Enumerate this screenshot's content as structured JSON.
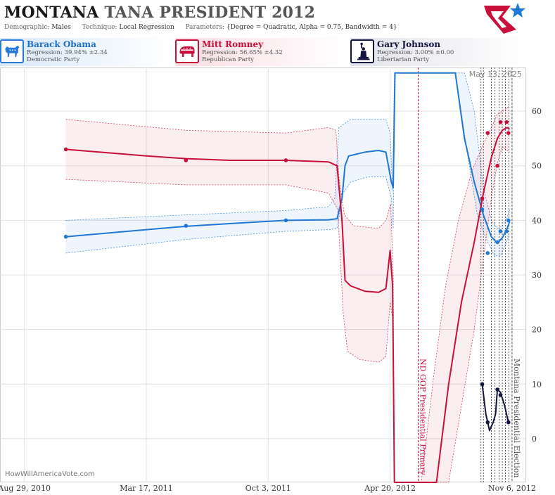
{
  "header": {
    "title_state": "MONTANA",
    "title_rest": "TANA PRESIDENT 2012",
    "demographic_label": "Demographic:",
    "demographic_value": "Males",
    "technique_label": "Technique:",
    "technique_value": "Local Regression",
    "parameters_label": "Parameters:",
    "parameters_value": "{Degree = Quadratic, Alpha = 0.75, Bandwidth = 4}"
  },
  "candidates": [
    {
      "name": "Barack Obama",
      "regression": "Regression: 39.94% ±2.34",
      "party": "Democratic Party",
      "color": "#1f78d4",
      "icon": "donkey-icon"
    },
    {
      "name": "Mitt Romney",
      "regression": "Regression: 56.65% ±4.32",
      "party": "Republican Party",
      "color": "#c8103a",
      "icon": "elephant-icon"
    },
    {
      "name": "Gary Johnson",
      "regression": "Regression: 3.00% ±0.00",
      "party": "Libertarian Party",
      "color": "#141440",
      "icon": "liberty-statue-icon"
    }
  ],
  "watermark": "HowWillAmericaVote.com",
  "date_stamp": "May 13, 2025",
  "chart_data": {
    "type": "line",
    "x_axis": {
      "type": "date",
      "range": [
        "2010-07-20",
        "2012-11-28"
      ],
      "ticks": [
        {
          "date": "2010-08-29",
          "label": "Aug 29, 2010"
        },
        {
          "date": "2011-03-17",
          "label": "Mar 17, 2011"
        },
        {
          "date": "2011-10-03",
          "label": "Oct 3, 2011"
        },
        {
          "date": "2012-04-20",
          "label": "Apr 20, 2012"
        },
        {
          "date": "2012-11-06",
          "label": "Nov 6, 2012"
        }
      ]
    },
    "y_axis": {
      "range": [
        -8,
        68
      ],
      "ticks": [
        0,
        10,
        20,
        30,
        40,
        50,
        60
      ],
      "position": "right"
    },
    "grid": true,
    "events": [
      {
        "date": "2012-06-05",
        "label": "ND GOP Presidential Primary",
        "color": "#c8103a"
      },
      {
        "date": "2012-11-06",
        "label": "Montana Presidential Election",
        "color": "#555555"
      }
    ],
    "poll_dates": [
      "2012-09-16",
      "2012-09-20",
      "2012-10-03",
      "2012-10-09",
      "2012-10-16",
      "2012-10-21",
      "2012-10-26",
      "2012-11-01"
    ],
    "series": [
      {
        "name": "Barack Obama",
        "color": "#1f78d4",
        "points": [
          {
            "date": "2010-11-05",
            "value": 37
          },
          {
            "date": "2011-05-21",
            "value": 39
          },
          {
            "date": "2011-11-01",
            "value": 40
          },
          {
            "date": "2012-09-18",
            "value": 42
          },
          {
            "date": "2012-09-27",
            "value": 34
          },
          {
            "date": "2012-10-13",
            "value": 36
          },
          {
            "date": "2012-10-18",
            "value": 38
          },
          {
            "date": "2012-10-28",
            "value": 38
          },
          {
            "date": "2012-10-31",
            "value": 40
          }
        ],
        "trend": [
          {
            "date": "2010-11-05",
            "value": 37.0
          },
          {
            "date": "2011-03-17",
            "value": 38.3
          },
          {
            "date": "2011-05-21",
            "value": 38.9
          },
          {
            "date": "2011-08-01",
            "value": 39.4
          },
          {
            "date": "2011-11-01",
            "value": 40.0
          },
          {
            "date": "2012-01-10",
            "value": 40.1
          },
          {
            "date": "2012-01-24",
            "value": 40.3
          },
          {
            "date": "2012-02-01",
            "value": 44.0
          },
          {
            "date": "2012-02-06",
            "value": 50.0
          },
          {
            "date": "2012-02-12",
            "value": 51.8
          },
          {
            "date": "2012-03-10",
            "value": 52.5
          },
          {
            "date": "2012-04-01",
            "value": 52.8
          },
          {
            "date": "2012-04-13",
            "value": 52.5
          },
          {
            "date": "2012-04-22",
            "value": 47.0
          },
          {
            "date": "2012-04-25",
            "value": 46.0
          },
          {
            "date": "2012-04-28",
            "value": 67.0
          },
          {
            "date": "2012-08-05",
            "value": 67.0
          },
          {
            "date": "2012-08-20",
            "value": 55.0
          },
          {
            "date": "2012-09-05",
            "value": 47.0
          },
          {
            "date": "2012-09-20",
            "value": 41.0
          },
          {
            "date": "2012-10-03",
            "value": 37.0
          },
          {
            "date": "2012-10-13",
            "value": 35.8
          },
          {
            "date": "2012-10-21",
            "value": 36.8
          },
          {
            "date": "2012-10-29",
            "value": 38.5
          },
          {
            "date": "2012-11-02",
            "value": 39.8
          }
        ],
        "band_upper": [
          {
            "date": "2010-11-05",
            "value": 40.0
          },
          {
            "date": "2011-05-21",
            "value": 41.0
          },
          {
            "date": "2011-11-01",
            "value": 41.8
          },
          {
            "date": "2012-01-10",
            "value": 42.5
          },
          {
            "date": "2012-01-20",
            "value": 44.0
          },
          {
            "date": "2012-01-27",
            "value": 57.0
          },
          {
            "date": "2012-02-15",
            "value": 58.5
          },
          {
            "date": "2012-04-13",
            "value": 58.5
          },
          {
            "date": "2012-04-20",
            "value": 56.0
          },
          {
            "date": "2012-04-24",
            "value": 45.5
          },
          {
            "date": "2012-04-27",
            "value": 67.0
          },
          {
            "date": "2012-08-20",
            "value": 67.0
          },
          {
            "date": "2012-09-05",
            "value": 60.0
          },
          {
            "date": "2012-09-20",
            "value": 46.0
          },
          {
            "date": "2012-10-03",
            "value": 40.0
          },
          {
            "date": "2012-10-13",
            "value": 38.5
          },
          {
            "date": "2012-10-21",
            "value": 39.0
          },
          {
            "date": "2012-10-29",
            "value": 40.5
          },
          {
            "date": "2012-11-02",
            "value": 42.0
          }
        ],
        "band_lower": [
          {
            "date": "2010-11-05",
            "value": 34.0
          },
          {
            "date": "2011-05-21",
            "value": 36.5
          },
          {
            "date": "2011-11-01",
            "value": 38.0
          },
          {
            "date": "2012-01-10",
            "value": 38.3
          },
          {
            "date": "2012-01-24",
            "value": 38.5
          },
          {
            "date": "2012-02-03",
            "value": 45.0
          },
          {
            "date": "2012-02-15",
            "value": 47.0
          },
          {
            "date": "2012-03-15",
            "value": 48.0
          },
          {
            "date": "2012-04-13",
            "value": 48.0
          },
          {
            "date": "2012-04-22",
            "value": 44.0
          },
          {
            "date": "2012-04-25",
            "value": 38.5
          },
          {
            "date": "2012-04-28",
            "value": 67.0
          },
          {
            "date": "2012-08-05",
            "value": 67.0
          },
          {
            "date": "2012-08-25",
            "value": 52.0
          },
          {
            "date": "2012-09-10",
            "value": 41.0
          },
          {
            "date": "2012-09-25",
            "value": 36.5
          },
          {
            "date": "2012-10-08",
            "value": 33.5
          },
          {
            "date": "2012-10-18",
            "value": 33.5
          },
          {
            "date": "2012-10-26",
            "value": 35.5
          },
          {
            "date": "2012-11-02",
            "value": 37.5
          }
        ]
      },
      {
        "name": "Mitt Romney",
        "color": "#c8103a",
        "points": [
          {
            "date": "2010-11-05",
            "value": 53
          },
          {
            "date": "2011-05-21",
            "value": 51
          },
          {
            "date": "2011-11-01",
            "value": 51
          },
          {
            "date": "2012-09-18",
            "value": 44
          },
          {
            "date": "2012-09-27",
            "value": 56
          },
          {
            "date": "2012-10-13",
            "value": 50
          },
          {
            "date": "2012-10-18",
            "value": 58
          },
          {
            "date": "2012-10-28",
            "value": 58
          },
          {
            "date": "2012-10-31",
            "value": 56
          }
        ],
        "trend": [
          {
            "date": "2010-11-05",
            "value": 53.0
          },
          {
            "date": "2011-03-17",
            "value": 51.8
          },
          {
            "date": "2011-05-21",
            "value": 51.3
          },
          {
            "date": "2011-08-01",
            "value": 51.0
          },
          {
            "date": "2011-11-01",
            "value": 51.0
          },
          {
            "date": "2012-01-10",
            "value": 50.7
          },
          {
            "date": "2012-01-24",
            "value": 50.0
          },
          {
            "date": "2012-02-01",
            "value": 40.0
          },
          {
            "date": "2012-02-06",
            "value": 29.0
          },
          {
            "date": "2012-02-15",
            "value": 28.0
          },
          {
            "date": "2012-03-10",
            "value": 27.0
          },
          {
            "date": "2012-04-01",
            "value": 26.8
          },
          {
            "date": "2012-04-13",
            "value": 27.5
          },
          {
            "date": "2012-04-20",
            "value": 34.5
          },
          {
            "date": "2012-04-24",
            "value": 28.0
          },
          {
            "date": "2012-04-27",
            "value": -8.0
          },
          {
            "date": "2012-07-05",
            "value": -8.0
          },
          {
            "date": "2012-07-25",
            "value": 10.0
          },
          {
            "date": "2012-08-15",
            "value": 25.0
          },
          {
            "date": "2012-09-05",
            "value": 36.0
          },
          {
            "date": "2012-09-20",
            "value": 45.0
          },
          {
            "date": "2012-10-03",
            "value": 51.5
          },
          {
            "date": "2012-10-13",
            "value": 55.0
          },
          {
            "date": "2012-10-21",
            "value": 56.5
          },
          {
            "date": "2012-10-29",
            "value": 57.0
          },
          {
            "date": "2012-11-02",
            "value": 56.7
          }
        ],
        "band_upper": [
          {
            "date": "2010-11-05",
            "value": 58.5
          },
          {
            "date": "2011-05-21",
            "value": 56.5
          },
          {
            "date": "2011-11-01",
            "value": 56.0
          },
          {
            "date": "2012-01-10",
            "value": 57.0
          },
          {
            "date": "2012-01-22",
            "value": 56.5
          },
          {
            "date": "2012-01-27",
            "value": 48.0
          },
          {
            "date": "2012-02-05",
            "value": 41.0
          },
          {
            "date": "2012-02-20",
            "value": 39.0
          },
          {
            "date": "2012-04-01",
            "value": 38.5
          },
          {
            "date": "2012-04-13",
            "value": 40.0
          },
          {
            "date": "2012-04-21",
            "value": 43.0
          },
          {
            "date": "2012-04-25",
            "value": 30.0
          },
          {
            "date": "2012-04-27",
            "value": -8.0
          },
          {
            "date": "2012-06-10",
            "value": -8.0
          },
          {
            "date": "2012-07-01",
            "value": 12.0
          },
          {
            "date": "2012-07-20",
            "value": 28.0
          },
          {
            "date": "2012-08-10",
            "value": 40.0
          },
          {
            "date": "2012-09-01",
            "value": 49.0
          },
          {
            "date": "2012-09-20",
            "value": 54.0
          },
          {
            "date": "2012-10-03",
            "value": 57.0
          },
          {
            "date": "2012-10-13",
            "value": 59.5
          },
          {
            "date": "2012-10-21",
            "value": 60.0
          },
          {
            "date": "2012-11-02",
            "value": 61.0
          }
        ],
        "band_lower": [
          {
            "date": "2010-11-05",
            "value": 47.5
          },
          {
            "date": "2011-05-21",
            "value": 46.5
          },
          {
            "date": "2011-11-01",
            "value": 46.5
          },
          {
            "date": "2012-01-10",
            "value": 45.0
          },
          {
            "date": "2012-01-25",
            "value": 42.0
          },
          {
            "date": "2012-02-03",
            "value": 23.0
          },
          {
            "date": "2012-02-10",
            "value": 16.0
          },
          {
            "date": "2012-03-01",
            "value": 14.5
          },
          {
            "date": "2012-04-01",
            "value": 14.0
          },
          {
            "date": "2012-04-13",
            "value": 15.0
          },
          {
            "date": "2012-04-20",
            "value": 25.0
          },
          {
            "date": "2012-04-24",
            "value": 22.0
          },
          {
            "date": "2012-04-27",
            "value": -8.0
          },
          {
            "date": "2012-07-25",
            "value": -8.0
          },
          {
            "date": "2012-08-15",
            "value": 6.0
          },
          {
            "date": "2012-09-05",
            "value": 20.0
          },
          {
            "date": "2012-09-20",
            "value": 33.0
          },
          {
            "date": "2012-10-03",
            "value": 44.0
          },
          {
            "date": "2012-10-13",
            "value": 50.5
          },
          {
            "date": "2012-10-21",
            "value": 53.5
          },
          {
            "date": "2012-11-02",
            "value": 52.5
          }
        ]
      },
      {
        "name": "Gary Johnson",
        "color": "#141440",
        "points": [
          {
            "date": "2012-09-18",
            "value": 10
          },
          {
            "date": "2012-09-27",
            "value": 3
          },
          {
            "date": "2012-10-13",
            "value": 9
          },
          {
            "date": "2012-10-18",
            "value": 8
          },
          {
            "date": "2012-10-31",
            "value": 3
          }
        ],
        "trend": [
          {
            "date": "2012-09-18",
            "value": 10.0
          },
          {
            "date": "2012-09-24",
            "value": 4.5
          },
          {
            "date": "2012-09-30",
            "value": 1.5
          },
          {
            "date": "2012-10-06",
            "value": 3.0
          },
          {
            "date": "2012-10-10",
            "value": 4.5
          },
          {
            "date": "2012-10-13",
            "value": 9.0
          },
          {
            "date": "2012-10-18",
            "value": 8.5
          },
          {
            "date": "2012-10-25",
            "value": 6.0
          },
          {
            "date": "2012-10-31",
            "value": 3.0
          }
        ]
      }
    ]
  }
}
